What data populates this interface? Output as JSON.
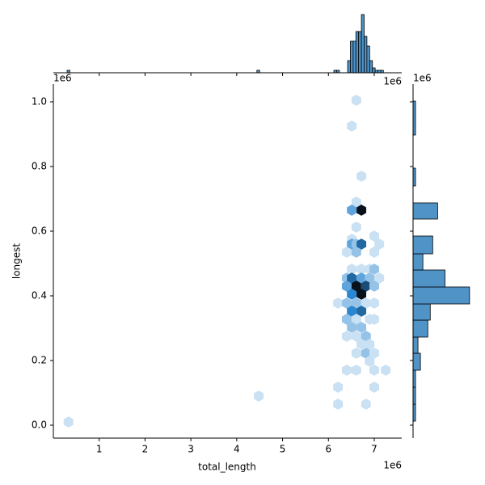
{
  "chart_data": {
    "type": "hexbin",
    "xlabel": "total_length",
    "ylabel": "longest",
    "x_offset_label": "1e6",
    "y_offset_label": "1e6",
    "xlim": [
      0,
      7600000
    ],
    "ylim": [
      -40000,
      1055000
    ],
    "xticks": [
      {
        "value": 1000000,
        "label": "1"
      },
      {
        "value": 2000000,
        "label": "2"
      },
      {
        "value": 3000000,
        "label": "3"
      },
      {
        "value": 4000000,
        "label": "4"
      },
      {
        "value": 5000000,
        "label": "5"
      },
      {
        "value": 6000000,
        "label": "6"
      },
      {
        "value": 7000000,
        "label": "7"
      }
    ],
    "yticks": [
      {
        "value": 0,
        "label": "0.0"
      },
      {
        "value": 200000,
        "label": "0.2"
      },
      {
        "value": 400000,
        "label": "0.4"
      },
      {
        "value": 600000,
        "label": "0.6"
      },
      {
        "value": 800000,
        "label": "0.8"
      },
      {
        "value": 1000000,
        "label": "1.0"
      }
    ],
    "cmap": [
      "#ffffff",
      "#2a86d0",
      "#08121c"
    ],
    "x": [
      330000,
      4480000,
      6610000,
      6510000,
      6720000,
      6610000,
      6510000,
      6720000,
      6610000,
      6510000,
      7000000,
      7110000,
      6510000,
      6610000,
      6720000,
      6400000,
      6610000,
      7000000,
      6510000,
      6720000,
      6900000,
      7000000,
      6400000,
      6510000,
      6720000,
      6900000,
      7110000,
      6400000,
      6610000,
      6820000,
      7000000,
      6510000,
      6720000,
      6610000,
      6210000,
      6400000,
      6820000,
      7000000,
      6510000,
      6720000,
      6400000,
      6610000,
      6900000,
      7000000,
      6510000,
      6720000,
      6400000,
      6610000,
      6820000,
      6720000,
      6900000,
      6610000,
      6820000,
      7000000,
      6900000,
      6400000,
      6610000,
      7000000,
      7250000,
      6210000,
      7000000,
      6210000,
      6820000
    ],
    "y": [
      10000,
      90000,
      1005000,
      925000,
      770000,
      690000,
      665000,
      665000,
      612500,
      575000,
      585000,
      560000,
      560000,
      560000,
      560000,
      535000,
      535000,
      535000,
      482500,
      482500,
      482500,
      482500,
      455000,
      455000,
      455000,
      455000,
      455000,
      430000,
      430000,
      430000,
      430000,
      405000,
      405000,
      377500,
      377500,
      377500,
      377500,
      377500,
      352500,
      352500,
      327500,
      327500,
      327500,
      327500,
      302500,
      302500,
      275000,
      275000,
      275000,
      250000,
      250000,
      222500,
      222500,
      222500,
      197500,
      170000,
      170000,
      170000,
      170000,
      117500,
      117500,
      65000,
      65000
    ],
    "values": [
      1,
      1,
      1,
      1,
      1,
      1,
      3,
      8,
      1,
      1,
      1,
      1,
      3,
      2,
      5,
      1,
      2,
      1,
      1,
      1,
      1,
      2,
      2,
      5,
      3,
      2,
      1,
      3,
      8,
      6,
      2,
      4,
      8,
      2,
      1,
      2,
      1,
      1,
      4,
      5,
      2,
      1,
      1,
      1,
      2,
      2,
      1,
      1,
      2,
      1,
      1,
      1,
      2,
      1,
      1,
      1,
      1,
      1,
      1,
      1,
      1,
      1,
      1
    ],
    "marginal_x": {
      "type": "histogram",
      "color": "#4f93c7",
      "offset_label": "1e6",
      "ylim": [
        0,
        26
      ],
      "bins": [
        300000,
        360000,
        4440000,
        4500000,
        6120000,
        6180000,
        6240000,
        6420000,
        6480000,
        6540000,
        6600000,
        6660000,
        6720000,
        6780000,
        6840000,
        6900000,
        6960000,
        7020000,
        7080000,
        7140000,
        7200000
      ],
      "values": [
        1,
        0,
        1,
        0,
        1,
        1,
        0,
        5,
        13,
        13,
        17,
        17,
        24,
        15,
        11,
        5,
        2,
        1,
        1,
        1
      ]
    },
    "marginal_y": {
      "type": "histogram",
      "color": "#4f93c7",
      "offset_label": "1e6",
      "xlim": [
        0,
        26
      ],
      "bins": [
        12500,
        65000,
        117500,
        170000,
        222500,
        272500,
        325000,
        375000,
        427500,
        480000,
        530000,
        585000,
        637500,
        687500,
        740000,
        795000,
        897500,
        1002500
      ],
      "values": [
        1,
        1,
        1,
        3,
        2,
        6,
        7,
        23,
        13,
        4,
        8,
        0,
        10,
        0,
        1,
        0,
        1
      ]
    }
  }
}
